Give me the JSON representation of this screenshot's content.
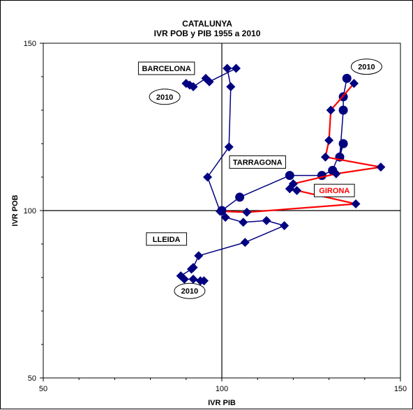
{
  "chart_data": {
    "type": "scatter",
    "title": "CATALUNYA",
    "subtitle": "IVR POB y PIB 1955 a 2010",
    "xlabel": "IVR PIB",
    "ylabel": "IVR POB",
    "xlim": [
      50,
      150
    ],
    "ylim": [
      50,
      150
    ],
    "x_ticks": [
      "50",
      "100",
      "150"
    ],
    "y_ticks": [
      "50",
      "100",
      "150"
    ],
    "reference_lines": {
      "x": 100,
      "y": 100
    },
    "grid": false,
    "series": [
      {
        "label": "BARCELONA",
        "color": "#000080",
        "marker": "diamond",
        "points": [
          {
            "x": 99.5,
            "y": 99.8
          },
          {
            "x": 96.0,
            "y": 110.0
          },
          {
            "x": 102.0,
            "y": 119.0
          },
          {
            "x": 102.5,
            "y": 137.0
          },
          {
            "x": 101.5,
            "y": 142.5
          },
          {
            "x": 104.0,
            "y": 142.5
          },
          {
            "x": 96.5,
            "y": 138.5
          },
          {
            "x": 95.5,
            "y": 139.5
          },
          {
            "x": 92.0,
            "y": 137.0
          },
          {
            "x": 91.0,
            "y": 137.5
          },
          {
            "x": 90.0,
            "y": 138.0
          }
        ]
      },
      {
        "label": "LLEIDA",
        "color": "#000080",
        "marker": "diamond",
        "points": [
          {
            "x": 100.0,
            "y": 100.0
          },
          {
            "x": 101.0,
            "y": 98.0
          },
          {
            "x": 106.0,
            "y": 96.5
          },
          {
            "x": 112.5,
            "y": 97.0
          },
          {
            "x": 117.5,
            "y": 95.5
          },
          {
            "x": 106.5,
            "y": 90.5
          },
          {
            "x": 93.5,
            "y": 86.5
          },
          {
            "x": 92.0,
            "y": 83.0
          },
          {
            "x": 91.5,
            "y": 82.5
          },
          {
            "x": 88.5,
            "y": 80.5
          },
          {
            "x": 89.5,
            "y": 79.5
          },
          {
            "x": 92.0,
            "y": 79.5
          },
          {
            "x": 95.0,
            "y": 79.0
          },
          {
            "x": 94.0,
            "y": 79.0
          }
        ]
      },
      {
        "label": "TARRAGONA",
        "color": "#000080",
        "marker": "circle",
        "points": [
          {
            "x": 100.0,
            "y": 100.0
          },
          {
            "x": 105.0,
            "y": 104.0
          },
          {
            "x": 119.0,
            "y": 110.5
          },
          {
            "x": 128.0,
            "y": 110.5
          },
          {
            "x": 131.0,
            "y": 112.0
          },
          {
            "x": 134.0,
            "y": 120.0
          },
          {
            "x": 133.0,
            "y": 116.0
          },
          {
            "x": 134.0,
            "y": 130.0
          },
          {
            "x": 134.0,
            "y": 134.0
          },
          {
            "x": 135.0,
            "y": 139.5
          }
        ]
      },
      {
        "label": "GIRONA",
        "color": "#ff0000",
        "marker": "diamond",
        "points": [
          {
            "x": 100.0,
            "y": 99.8
          },
          {
            "x": 107.0,
            "y": 99.5
          },
          {
            "x": 137.5,
            "y": 102.0
          },
          {
            "x": 121.0,
            "y": 106.0
          },
          {
            "x": 119.0,
            "y": 106.5
          },
          {
            "x": 120.0,
            "y": 108.0
          },
          {
            "x": 132.0,
            "y": 111.0
          },
          {
            "x": 144.5,
            "y": 113.0
          },
          {
            "x": 129.0,
            "y": 116.0
          },
          {
            "x": 130.0,
            "y": 121.0
          },
          {
            "x": 130.5,
            "y": 130.0
          },
          {
            "x": 137.0,
            "y": 138.0
          }
        ]
      }
    ],
    "annotations": [
      {
        "text": "BARCELONA",
        "box": "rect",
        "color": "#000000",
        "x": 84.5,
        "y": 142.5
      },
      {
        "text": "2010",
        "box": "ellipse",
        "color": "#000000",
        "x": 84.0,
        "y": 134.0
      },
      {
        "text": "TARRAGONA",
        "box": "rect",
        "color": "#000000",
        "x": 110.0,
        "y": 114.5
      },
      {
        "text": "GIRONA",
        "box": "rect",
        "color": "#ff0000",
        "x": 131.5,
        "y": 106.0
      },
      {
        "text": "LLEIDA",
        "box": "rect",
        "color": "#000000",
        "x": 84.5,
        "y": 91.5
      },
      {
        "text": "2010",
        "box": "ellipse",
        "color": "#000000",
        "x": 91.0,
        "y": 76.0
      },
      {
        "text": "2010",
        "box": "ellipse",
        "color": "#000000",
        "x": 140.5,
        "y": 143.0
      }
    ]
  }
}
